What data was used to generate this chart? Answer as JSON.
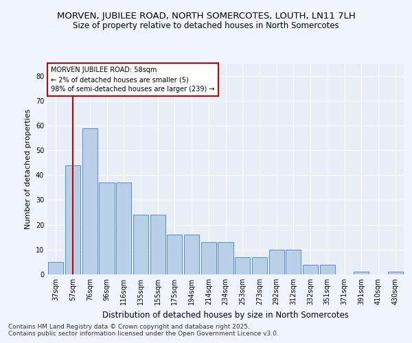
{
  "title1": "MORVEN, JUBILEE ROAD, NORTH SOMERCOTES, LOUTH, LN11 7LH",
  "title2": "Size of property relative to detached houses in North Somercotes",
  "xlabel": "Distribution of detached houses by size in North Somercotes",
  "ylabel": "Number of detached properties",
  "categories": [
    "37sqm",
    "57sqm",
    "76sqm",
    "96sqm",
    "116sqm",
    "135sqm",
    "155sqm",
    "175sqm",
    "194sqm",
    "214sqm",
    "234sqm",
    "253sqm",
    "273sqm",
    "292sqm",
    "312sqm",
    "332sqm",
    "351sqm",
    "371sqm",
    "391sqm",
    "410sqm",
    "430sqm"
  ],
  "bar_values": [
    5,
    44,
    59,
    37,
    37,
    24,
    24,
    16,
    16,
    13,
    13,
    7,
    7,
    10,
    10,
    4,
    4,
    0,
    1,
    0,
    1
  ],
  "bar_color": "#b8cfe8",
  "bar_edge_color": "#5b8cc8",
  "background_color": "#e8eef8",
  "grid_color": "#ffffff",
  "annotation_box_text": "MORVEN JUBILEE ROAD: 58sqm\n← 2% of detached houses are smaller (5)\n98% of semi-detached houses are larger (239) →",
  "annotation_box_color": "#ffffff",
  "annotation_box_edge_color": "#cc0000",
  "vline_x": 1,
  "vline_color": "#cc0000",
  "footer1": "Contains HM Land Registry data © Crown copyright and database right 2025.",
  "footer2": "Contains public sector information licensed under the Open Government Licence v3.0.",
  "ylim": [
    0,
    85
  ],
  "yticks": [
    0,
    10,
    20,
    30,
    40,
    50,
    60,
    70,
    80
  ],
  "fig_bg_color": "#f0f4ff",
  "title1_fontsize": 9.5,
  "title2_fontsize": 8.5,
  "xlabel_fontsize": 8.5,
  "ylabel_fontsize": 8,
  "tick_fontsize": 7,
  "footer_fontsize": 6.5,
  "ann_fontsize": 7
}
